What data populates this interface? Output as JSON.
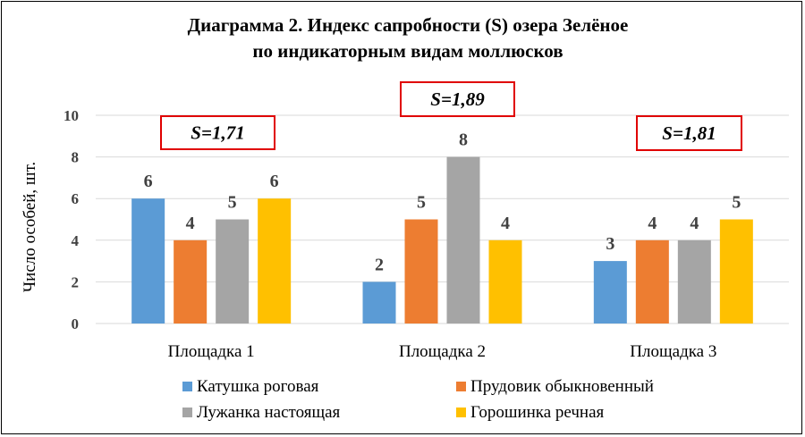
{
  "chart_data": {
    "type": "bar",
    "title": [
      "Диаграмма 2. Индекс сапробности  (S) озера Зелёное",
      "по индикаторным  видам моллюсков"
    ],
    "ylabel": "Число особей, шт.",
    "xlabel": "",
    "ylim": [
      0,
      10
    ],
    "yticks": [
      "0",
      "2",
      "4",
      "6",
      "8",
      "10"
    ],
    "grid": true,
    "legend_position": "bottom",
    "categories": [
      "Площадка 1",
      "Площадка 2",
      "Площадка 3"
    ],
    "series": [
      {
        "name": "Катушка роговая",
        "color": "#5b9bd5",
        "values": [
          6,
          2,
          3
        ]
      },
      {
        "name": "Прудовик обыкновенный",
        "color": "#ed7d31",
        "values": [
          4,
          5,
          4
        ]
      },
      {
        "name": "Лужанка настоящая",
        "color": "#a5a5a5",
        "values": [
          5,
          8,
          4
        ]
      },
      {
        "name": "Горошинка речная",
        "color": "#ffc000",
        "values": [
          6,
          4,
          5
        ]
      }
    ],
    "annotations": [
      "S=1,71",
      "S=1,89",
      "S=1,81"
    ],
    "annotation_border_color": "#e00000"
  }
}
